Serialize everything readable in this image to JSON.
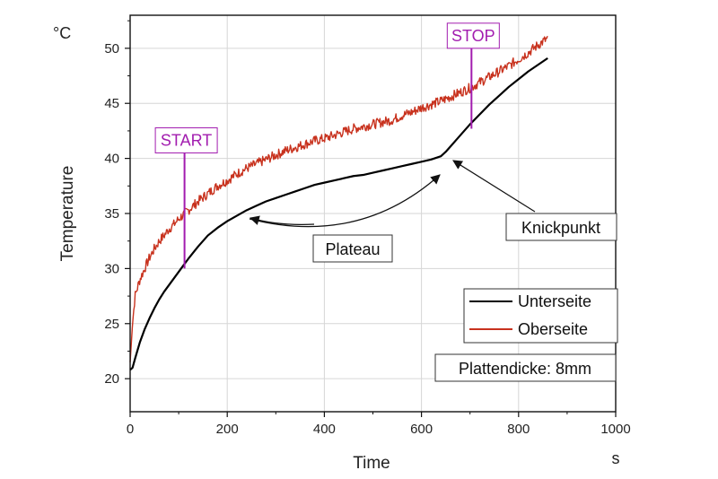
{
  "chart_data": {
    "type": "line",
    "xlabel": "Time",
    "ylabel": "Temperature",
    "x_unit": "s",
    "y_unit": "°C",
    "xlim": [
      0,
      1000
    ],
    "ylim": [
      17,
      53
    ],
    "x_ticks": [
      0,
      200,
      400,
      600,
      800,
      1000
    ],
    "y_ticks": [
      20,
      25,
      30,
      35,
      40,
      45,
      50
    ],
    "grid": true,
    "legend_position": "lower-right",
    "series": [
      {
        "name": "Unterseite",
        "color": "#000000",
        "x": [
          0,
          5,
          10,
          20,
          30,
          40,
          50,
          60,
          70,
          80,
          90,
          100,
          110,
          120,
          140,
          160,
          180,
          200,
          220,
          240,
          260,
          280,
          300,
          320,
          340,
          360,
          380,
          400,
          420,
          440,
          460,
          480,
          500,
          520,
          540,
          560,
          580,
          600,
          620,
          640,
          650,
          660,
          680,
          700,
          720,
          740,
          760,
          780,
          800,
          820,
          840,
          860
        ],
        "y": [
          20.8,
          21.0,
          21.8,
          23.3,
          24.5,
          25.5,
          26.4,
          27.2,
          27.9,
          28.5,
          29.1,
          29.7,
          30.3,
          30.9,
          32.0,
          33.0,
          33.7,
          34.3,
          34.8,
          35.3,
          35.7,
          36.1,
          36.4,
          36.7,
          37.0,
          37.3,
          37.6,
          37.8,
          38.0,
          38.2,
          38.4,
          38.5,
          38.7,
          38.9,
          39.1,
          39.3,
          39.5,
          39.7,
          39.9,
          40.2,
          40.6,
          41.1,
          42.1,
          43.1,
          44.0,
          44.9,
          45.7,
          46.5,
          47.2,
          47.9,
          48.5,
          49.1
        ]
      },
      {
        "name": "Oberseite",
        "color": "#c8321e",
        "x": [
          0,
          5,
          10,
          20,
          30,
          40,
          50,
          60,
          70,
          80,
          90,
          100,
          120,
          140,
          160,
          180,
          200,
          220,
          240,
          260,
          280,
          300,
          320,
          340,
          360,
          380,
          400,
          420,
          440,
          460,
          480,
          500,
          520,
          540,
          560,
          580,
          600,
          620,
          640,
          660,
          680,
          700,
          720,
          740,
          760,
          780,
          800,
          820,
          840,
          860
        ],
        "y": [
          21.5,
          25.0,
          27.5,
          29.0,
          30.0,
          31.0,
          31.8,
          32.5,
          33.0,
          33.6,
          34.0,
          34.5,
          35.3,
          36.1,
          36.8,
          37.5,
          38.0,
          38.6,
          39.1,
          39.5,
          39.9,
          40.3,
          40.7,
          41.0,
          41.3,
          41.6,
          41.8,
          42.1,
          42.4,
          42.7,
          42.9,
          43.1,
          43.3,
          43.5,
          43.9,
          44.2,
          44.6,
          44.9,
          45.2,
          45.6,
          46.0,
          46.4,
          46.9,
          47.4,
          47.9,
          48.4,
          49.0,
          49.6,
          50.3,
          50.9
        ]
      }
    ],
    "markers": [
      {
        "label": "START",
        "x": 112,
        "y_from": 30.0,
        "y_to": 40.5
      },
      {
        "label": "STOP",
        "x": 703,
        "y_from": 42.7,
        "y_to": 50.0
      }
    ],
    "annotations": [
      {
        "label": "Plateau"
      },
      {
        "label": "Knickpunkt"
      }
    ],
    "info_box": "Plattendicke: 8mm"
  }
}
